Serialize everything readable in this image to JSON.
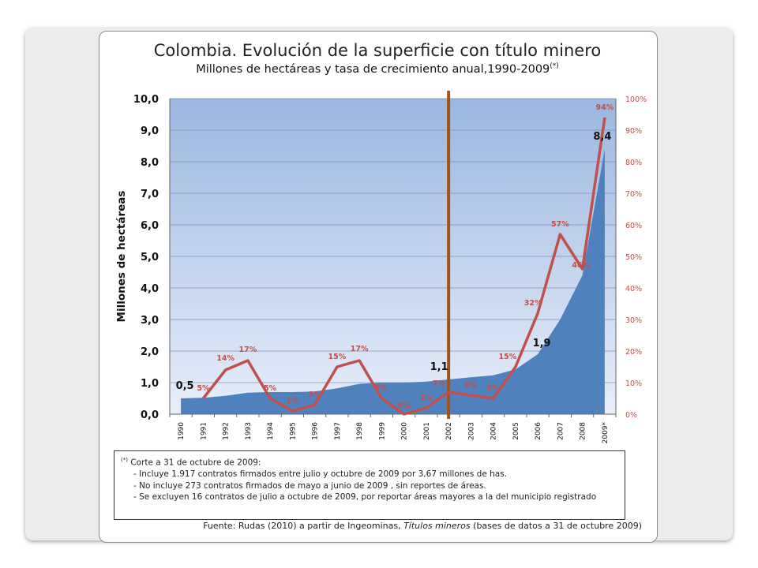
{
  "title": "Colombia. Evolución de la superficie con título minero",
  "subtitle": "Millones de hectáreas y tasa de crecimiento anual,1990-2009",
  "subtitle_note_mark": "(*)",
  "chart_data": {
    "type": "area+line",
    "categories": [
      "1990",
      "1991",
      "1992",
      "1993",
      "1994",
      "1995",
      "1996",
      "1997",
      "1998",
      "1999",
      "2000",
      "2001",
      "2002",
      "2003",
      "2004",
      "2005",
      "2006",
      "2007",
      "2008",
      "2009*"
    ],
    "series": [
      {
        "name": "",
        "kind": "area",
        "axis": "left",
        "values": [
          0.5,
          0.52,
          0.58,
          0.68,
          0.7,
          0.7,
          0.72,
          0.82,
          0.96,
          1.0,
          1.0,
          1.03,
          1.1,
          1.17,
          1.23,
          1.42,
          1.9,
          3.0,
          4.4,
          8.4
        ],
        "color": "#4f81bd"
      },
      {
        "name": "",
        "kind": "line",
        "axis": "right",
        "values": [
          null,
          5,
          14,
          17,
          5,
          1,
          3,
          15,
          17,
          5,
          0,
          2,
          7,
          6,
          5,
          15,
          32,
          57,
          46,
          94
        ],
        "color": "#c0504d"
      }
    ],
    "area_labels": [
      {
        "index": 0,
        "text": "0,5"
      },
      {
        "index": 12,
        "text": "1,1"
      },
      {
        "index": 16,
        "text": "1,9"
      },
      {
        "index": 19,
        "text": "8,4"
      }
    ],
    "line_labels": [
      {
        "index": 1,
        "text": "5%"
      },
      {
        "index": 2,
        "text": "14%"
      },
      {
        "index": 3,
        "text": "17%"
      },
      {
        "index": 4,
        "text": "5%"
      },
      {
        "index": 5,
        "text": "1%"
      },
      {
        "index": 6,
        "text": "3%"
      },
      {
        "index": 7,
        "text": "15%"
      },
      {
        "index": 8,
        "text": "17%"
      },
      {
        "index": 9,
        "text": "5%"
      },
      {
        "index": 10,
        "text": "0%"
      },
      {
        "index": 11,
        "text": "2%"
      },
      {
        "index": 12,
        "text": "7%"
      },
      {
        "index": 13,
        "text": "6%"
      },
      {
        "index": 14,
        "text": "5%"
      },
      {
        "index": 15,
        "text": "15%"
      },
      {
        "index": 16,
        "text": "32%"
      },
      {
        "index": 17,
        "text": "57%"
      },
      {
        "index": 18,
        "text": "46%"
      },
      {
        "index": 19,
        "text": "94%"
      }
    ],
    "y_left": {
      "label": "Millones de hectáreas",
      "min": 0,
      "max": 10,
      "ticks": [
        "0,0",
        "1,0",
        "2,0",
        "3,0",
        "4,0",
        "5,0",
        "6,0",
        "7,0",
        "8,0",
        "9,0",
        "10,0"
      ]
    },
    "y_right": {
      "label": "",
      "min": 0,
      "max": 100,
      "ticks": [
        "0%",
        "10%",
        "20%",
        "30%",
        "40%",
        "50%",
        "60%",
        "70%",
        "80%",
        "90%",
        "100%"
      ]
    },
    "vertical_marker": {
      "at_category": "2002",
      "color": "#a0521a"
    },
    "grid": true,
    "legend": "none"
  },
  "notes": {
    "mark": "(*)",
    "lead": "Corte a 31 de octubre de 2009:",
    "items": [
      "- Incluye 1.917 contratos firmados entre julio y octubre de 2009 por 3,67 millones de has.",
      "- No incluye  273 contratos firmados de mayo a junio de 2009 , sin reportes de áreas.",
      "- Se excluyen 16 contratos de julio a octubre de 2009, por reportar áreas mayores a la del municipio registrado"
    ]
  },
  "source": {
    "prefix": "Fuente: Rudas  (2010) a partir de Ingeominas, ",
    "italic": "Títulos mineros",
    "suffix": "  (bases de datos a  31 de octubre  2009)"
  },
  "colors": {
    "area": "#4f81bd",
    "plot_top": "#9bb7e0",
    "plot_bottom": "#e8eefa",
    "line": "#c0504d",
    "marker": "#a0521a",
    "right_axis_text": "#c0504d"
  }
}
